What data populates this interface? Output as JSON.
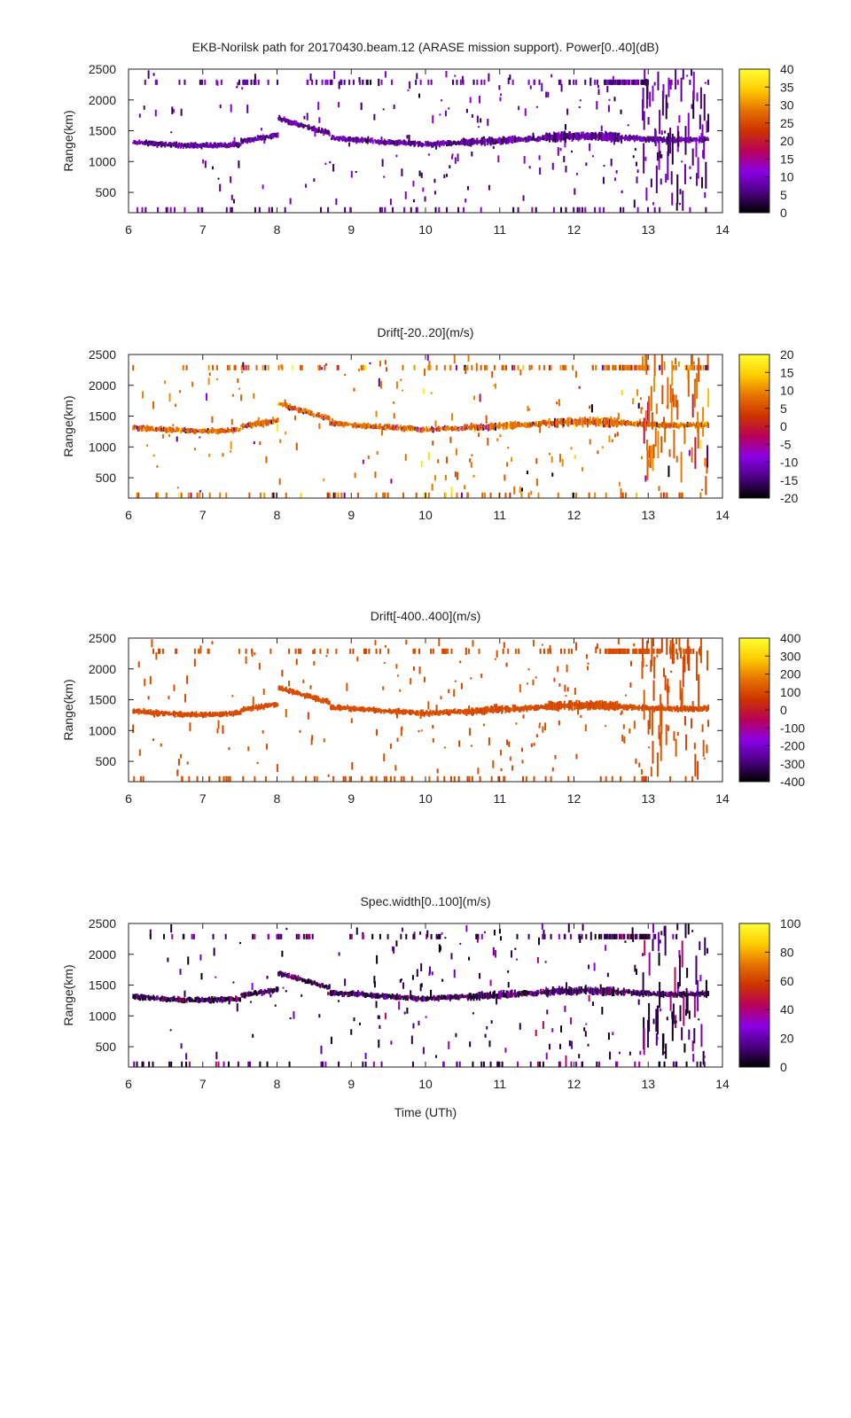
{
  "chart_data": [
    {
      "type": "heatmap",
      "title": "EKB-Norilsk path for 20170430.beam.12 (ARASE mission support). Power[0..40](dB)",
      "xlabel": "",
      "ylabel": "Range(km)",
      "xlim": [
        6,
        14
      ],
      "ylim": [
        170,
        2500
      ],
      "x_ticks": [
        "6",
        "7",
        "8",
        "9",
        "10",
        "11",
        "12",
        "13",
        "14"
      ],
      "y_ticks": [
        "500",
        "1000",
        "1500",
        "2000",
        "2500"
      ],
      "colorbar": {
        "min": 0,
        "max": 40,
        "ticks": [
          "0",
          "5",
          "10",
          "15",
          "20",
          "25",
          "30",
          "35",
          "40"
        ]
      },
      "palette": "purple",
      "colors": [
        "#000000",
        "#4b0082",
        "#8a00e6",
        "#b8005a",
        "#cc3300",
        "#e67300",
        "#ffcc00",
        "#ffff33"
      ]
    },
    {
      "type": "heatmap",
      "title": "Drift[-20..20](m/s)",
      "xlabel": "",
      "ylabel": "Range(km)",
      "xlim": [
        6,
        14
      ],
      "ylim": [
        170,
        2500
      ],
      "x_ticks": [
        "6",
        "7",
        "8",
        "9",
        "10",
        "11",
        "12",
        "13",
        "14"
      ],
      "y_ticks": [
        "500",
        "1000",
        "1500",
        "2000",
        "2500"
      ],
      "colorbar": {
        "min": -20,
        "max": 20,
        "ticks": [
          "-20",
          "-15",
          "-10",
          "-5",
          "0",
          "5",
          "10",
          "15",
          "20"
        ]
      },
      "palette": "red",
      "colors": [
        "#000000",
        "#4b0082",
        "#8a00e6",
        "#b8005a",
        "#cc3300",
        "#e67300",
        "#ffcc00",
        "#ffff33"
      ]
    },
    {
      "type": "heatmap",
      "title": "Drift[-400..400](m/s)",
      "xlabel": "",
      "ylabel": "Range(km)",
      "xlim": [
        6,
        14
      ],
      "ylim": [
        170,
        2500
      ],
      "x_ticks": [
        "6",
        "7",
        "8",
        "9",
        "10",
        "11",
        "12",
        "13",
        "14"
      ],
      "y_ticks": [
        "500",
        "1000",
        "1500",
        "2000",
        "2500"
      ],
      "colorbar": {
        "min": -400,
        "max": 400,
        "ticks": [
          "-400",
          "-300",
          "-200",
          "-100",
          "0",
          "100",
          "200",
          "300",
          "400"
        ]
      },
      "palette": "darkred",
      "colors": [
        "#000000",
        "#4b0082",
        "#8a00e6",
        "#b8005a",
        "#cc3300",
        "#e67300",
        "#ffcc00",
        "#ffff33"
      ]
    },
    {
      "type": "heatmap",
      "title": "Spec.width[0..100](m/s)",
      "xlabel": "Time (UTh)",
      "ylabel": "Range(km)",
      "xlim": [
        6,
        14
      ],
      "ylim": [
        170,
        2500
      ],
      "x_ticks": [
        "6",
        "7",
        "8",
        "9",
        "10",
        "11",
        "12",
        "13",
        "14"
      ],
      "y_ticks": [
        "500",
        "1000",
        "1500",
        "2000",
        "2500"
      ],
      "colorbar": {
        "min": 0,
        "max": 100,
        "ticks": [
          "0",
          "20",
          "40",
          "60",
          "80",
          "100"
        ]
      },
      "palette": "dark",
      "colors": [
        "#000000",
        "#4b0082",
        "#8a00e6",
        "#b8005a",
        "#cc3300",
        "#e67300",
        "#ffcc00",
        "#ffff33"
      ]
    }
  ]
}
